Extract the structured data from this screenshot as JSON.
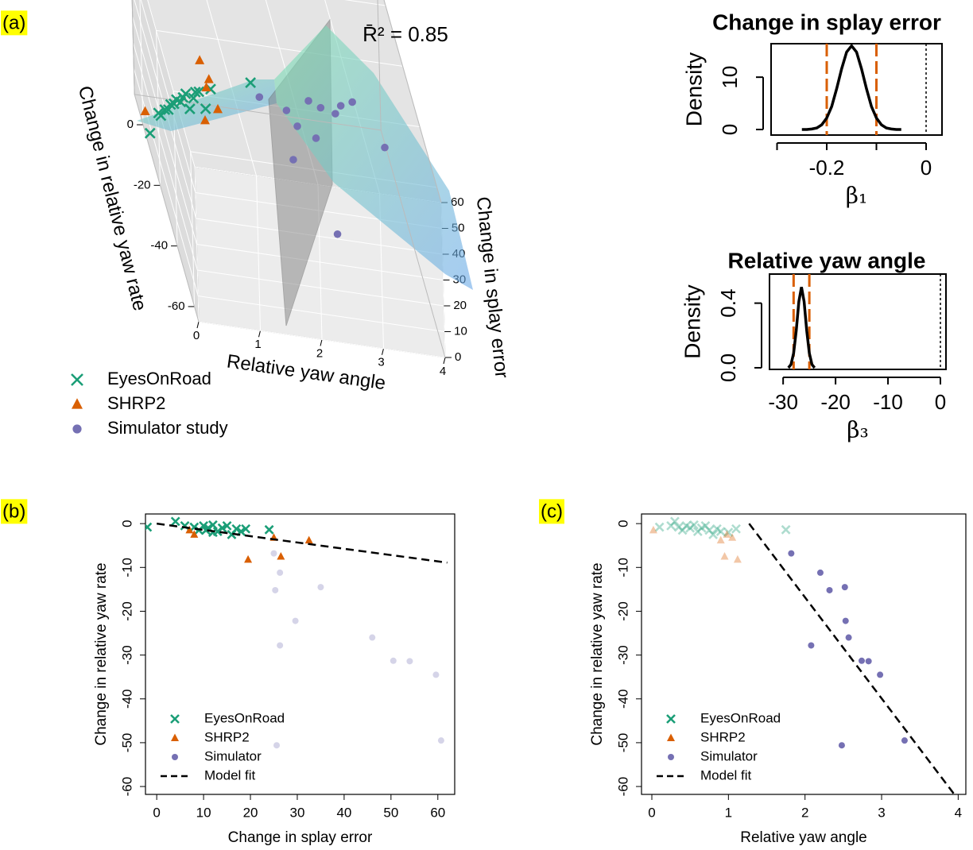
{
  "chart_data": [
    {
      "type": "scatter3d",
      "panel": "(a)",
      "annotation": "R̄² = 0.85",
      "xlabel": "Relative yaw angle",
      "ylabel": "Change in splay error",
      "zlabel": "Change in relative yaw rate",
      "xlim": [
        0,
        4
      ],
      "xticks": [
        0,
        1,
        2,
        3,
        4
      ],
      "ylim": [
        0,
        60
      ],
      "yticks": [
        0,
        10,
        20,
        30,
        40,
        50,
        60
      ],
      "zlim": [
        -65,
        10
      ],
      "zticks": [
        0,
        -20,
        -40,
        -60
      ],
      "series": [
        {
          "name": "EyesOnRoad",
          "marker": "x",
          "color": "#1b9e77",
          "x": [
            0.1,
            0.3,
            0.25,
            0.35,
            0.4,
            0.45,
            0.5,
            0.55,
            0.6,
            0.65,
            0.7,
            0.8,
            0.85,
            0.9,
            1.0,
            1.1,
            0.75,
            1.75
          ],
          "y": [
            -2,
            4,
            6,
            8,
            9,
            10,
            11,
            12,
            13,
            14,
            15,
            16,
            17,
            18,
            12,
            19,
            10.5,
            24
          ],
          "z": [
            -0.8,
            0.5,
            -0.5,
            -0.8,
            -1.5,
            -0.5,
            -1.0,
            -0.3,
            -1.8,
            -1.0,
            -0.5,
            -2.5,
            -1.2,
            -1.8,
            -2.0,
            -1.2,
            -1.5,
            -1.4
          ]
        },
        {
          "name": "SHRP2",
          "marker": "triangle",
          "color": "#d95f02",
          "x": [
            0.02,
            0.98,
            1.12,
            1.05,
            0.95,
            0.9
          ],
          "y": [
            7,
            8,
            19.5,
            25,
            26.5,
            32.5
          ],
          "z": [
            -1.5,
            -2.5,
            -8.2,
            -3.2,
            -7.5,
            -3.8
          ]
        },
        {
          "name": "Simulator study",
          "marker": "circle",
          "color": "#7570b3",
          "x": [
            1.82,
            2.2,
            2.32,
            2.52,
            2.53,
            2.57,
            2.08,
            2.74,
            2.83,
            2.98,
            2.48,
            3.3
          ],
          "y": [
            25,
            26.3,
            25.3,
            35,
            29.6,
            46,
            26.3,
            50.5,
            54,
            59.6,
            25.6,
            60.7
          ],
          "z": [
            -6.8,
            -11.2,
            -15.2,
            -14.5,
            -22.2,
            -26,
            -27.8,
            -31.3,
            -31.4,
            -34.5,
            -50.6,
            -49.5
          ]
        }
      ]
    },
    {
      "type": "density",
      "title": "Change in splay error",
      "xlabel": "β₁",
      "ylabel": "Density",
      "xlim": [
        -0.312,
        0.032
      ],
      "xticks": [
        -0.2,
        0
      ],
      "xminor": [
        -0.3,
        -0.1
      ],
      "ylim": [
        -1.06,
        16.4
      ],
      "yticks": [
        0,
        10
      ],
      "color": "#000000",
      "x": [
        -0.25,
        -0.24,
        -0.23,
        -0.22,
        -0.21,
        -0.2,
        -0.19,
        -0.18,
        -0.17,
        -0.16,
        -0.15,
        -0.14,
        -0.13,
        -0.12,
        -0.11,
        -0.1,
        -0.09,
        -0.08,
        -0.07,
        -0.06,
        -0.05
      ],
      "y": [
        0,
        0,
        0.1,
        0.3,
        0.9,
        2.2,
        4.4,
        7.8,
        11.6,
        14.8,
        16,
        14.8,
        11.6,
        7.8,
        4.4,
        2.2,
        0.9,
        0.3,
        0.1,
        0,
        0
      ],
      "intervals": [
        -0.2,
        -0.1
      ],
      "interval_color": "#d95f02",
      "reference": 0
    },
    {
      "type": "density",
      "title": "Relative yaw angle",
      "xlabel": "β₃",
      "ylabel": "Density",
      "xlim": [
        -32.6,
        1.06
      ],
      "xticks": [
        -30,
        -20,
        -10,
        0
      ],
      "ylim": [
        -0.01,
        0.58
      ],
      "yticks": [
        {
          "value": 0,
          "label": "0.0"
        },
        0.4
      ],
      "color": "#000000",
      "x": [
        -29,
        -28.5,
        -28,
        -27.5,
        -27,
        -26.5,
        -26,
        -25.5,
        -25,
        -24.5,
        -24
      ],
      "y": [
        0,
        0.02,
        0.09,
        0.23,
        0.41,
        0.5,
        0.41,
        0.23,
        0.09,
        0.02,
        0
      ],
      "intervals": [
        -28,
        -25
      ],
      "interval_color": "#d95f02",
      "reference": 0
    },
    {
      "type": "scatter",
      "panel": "(b)",
      "xlabel": "Change in splay error",
      "ylabel": "Change in relative yaw rate",
      "xlim": [
        -2.4,
        63.6
      ],
      "xticks": [
        0,
        10,
        20,
        30,
        40,
        50,
        60
      ],
      "ylim": [
        -61.8,
        2.2
      ],
      "yticks": [
        0,
        -10,
        -20,
        -30,
        -40,
        -50,
        -60
      ],
      "series": [
        {
          "name": "EyesOnRoad",
          "marker": "x",
          "color": "#1b9e77",
          "opacity": 1,
          "x": [
            -2,
            4,
            6,
            8,
            9,
            10,
            11,
            12,
            13,
            14,
            15,
            16,
            17,
            18,
            12,
            19,
            10.5,
            24
          ],
          "y": [
            -0.8,
            0.5,
            -0.5,
            -0.8,
            -1.5,
            -0.5,
            -1.0,
            -0.3,
            -1.8,
            -1.0,
            -0.5,
            -2.5,
            -1.2,
            -1.8,
            -2.0,
            -1.2,
            -1.5,
            -1.4
          ]
        },
        {
          "name": "SHRP2",
          "marker": "triangle",
          "color": "#d95f02",
          "opacity": 1,
          "x": [
            7,
            8,
            19.5,
            25,
            26.5,
            32.5
          ],
          "y": [
            -1.5,
            -2.5,
            -8.2,
            -3.2,
            -7.5,
            -3.8
          ]
        },
        {
          "name": "Simulator",
          "marker": "circle",
          "color": "#7570b3",
          "opacity": 0.3,
          "x": [
            25,
            26.3,
            25.3,
            35,
            29.6,
            46,
            26.3,
            50.5,
            54,
            59.6,
            25.6,
            60.7
          ],
          "y": [
            -6.8,
            -11.2,
            -15.2,
            -14.5,
            -22.2,
            -26,
            -27.8,
            -31.3,
            -31.4,
            -34.5,
            -50.6,
            -49.5
          ]
        }
      ],
      "fit": {
        "name": "Model fit",
        "x": [
          0,
          62
        ],
        "y": [
          0,
          -8.9
        ]
      }
    },
    {
      "type": "scatter",
      "panel": "(c)",
      "xlabel": "Relative yaw angle",
      "ylabel": "Change in relative yaw rate",
      "xlim": [
        -0.135,
        4.1
      ],
      "xticks": [
        0,
        1,
        2,
        3,
        4
      ],
      "ylim": [
        -61.8,
        2.2
      ],
      "yticks": [
        0,
        -10,
        -20,
        -30,
        -40,
        -50,
        -60
      ],
      "series": [
        {
          "name": "EyesOnRoad",
          "marker": "x",
          "color": "#1b9e77",
          "opacity": 0.35,
          "x": [
            0.1,
            0.3,
            0.25,
            0.35,
            0.4,
            0.45,
            0.5,
            0.55,
            0.6,
            0.65,
            0.7,
            0.8,
            0.85,
            0.9,
            1.0,
            1.1,
            0.75,
            1.75
          ],
          "y": [
            -0.8,
            0.5,
            -0.5,
            -0.8,
            -1.5,
            -0.5,
            -1.0,
            -0.3,
            -1.8,
            -1.0,
            -0.5,
            -2.5,
            -1.2,
            -1.8,
            -2.0,
            -1.2,
            -1.5,
            -1.4
          ]
        },
        {
          "name": "SHRP2",
          "marker": "triangle",
          "color": "#d95f02",
          "opacity": 0.35,
          "x": [
            0.02,
            0.98,
            1.12,
            1.05,
            0.95,
            0.9
          ],
          "y": [
            -1.5,
            -2.5,
            -8.2,
            -3.2,
            -7.5,
            -3.8
          ]
        },
        {
          "name": "Simulator",
          "marker": "circle",
          "color": "#7570b3",
          "opacity": 1,
          "x": [
            1.82,
            2.2,
            2.32,
            2.52,
            2.53,
            2.57,
            2.08,
            2.74,
            2.83,
            2.98,
            2.48,
            3.3
          ],
          "y": [
            -6.8,
            -11.2,
            -15.2,
            -14.5,
            -22.2,
            -26,
            -27.8,
            -31.3,
            -31.4,
            -34.5,
            -50.6,
            -49.5
          ]
        }
      ],
      "fit": {
        "name": "Model fit",
        "x": [
          1.27,
          3.95
        ],
        "y": [
          0,
          -61.8
        ]
      }
    }
  ]
}
